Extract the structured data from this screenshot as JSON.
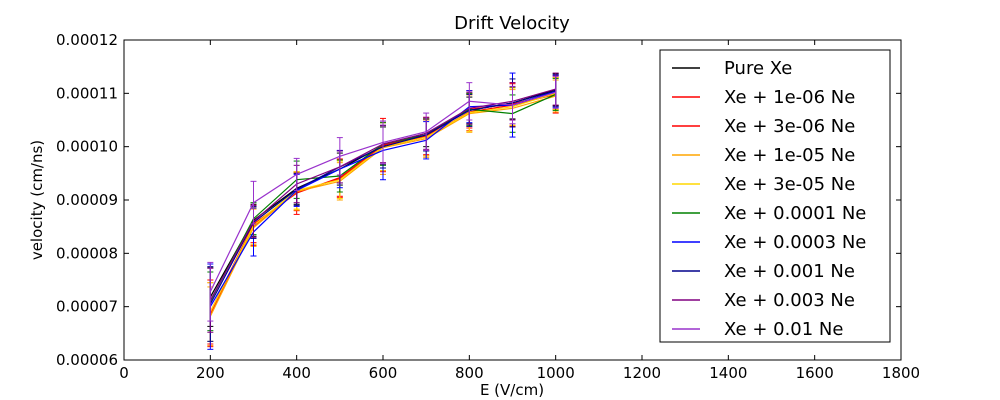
{
  "chart_data": {
    "type": "line",
    "title": "Drift Velocity",
    "xlabel": "E (V/cm)",
    "ylabel": "velocity (cm/ns)",
    "xlim": [
      0,
      1800
    ],
    "ylim": [
      6e-05,
      0.00012
    ],
    "x_ticks": [
      0,
      200,
      400,
      600,
      800,
      1000,
      1200,
      1400,
      1600,
      1800
    ],
    "y_ticks": [
      6e-05,
      7e-05,
      8e-05,
      9e-05,
      0.0001,
      0.00011,
      0.00012
    ],
    "x_tick_labels": [
      "0",
      "200",
      "400",
      "600",
      "800",
      "1000",
      "1200",
      "1400",
      "1600",
      "1800"
    ],
    "y_tick_labels": [
      "0.00006",
      "0.00007",
      "0.00008",
      "0.00009",
      "0.00010",
      "0.00011",
      "0.00012"
    ],
    "legend_position": "top-right",
    "grid": false,
    "x": [
      200,
      300,
      400,
      500,
      600,
      700,
      800,
      900,
      1000
    ],
    "series": [
      {
        "name": "Pure Xe",
        "color": "#000000",
        "values": [
          7.18e-05,
          8.62e-05,
          9.22e-05,
          9.58e-05,
          0.0001002,
          0.0001025,
          0.0001068,
          0.0001082,
          0.0001107
        ],
        "err": [
          5.5e-06,
          3e-06,
          3e-06,
          3e-06,
          3.5e-06,
          2.5e-06,
          2.5e-06,
          3e-06,
          3e-06
        ]
      },
      {
        "name": "Xe + 1e-06 Ne",
        "color": "#ff0000",
        "values": [
          6.9e-05,
          8.55e-05,
          9.13e-05,
          9.42e-05,
          0.0001003,
          0.000102,
          0.000107,
          0.000108,
          0.00011
        ],
        "err": [
          6e-06,
          3.5e-06,
          4e-06,
          3.5e-06,
          5e-06,
          3.5e-06,
          3.5e-06,
          4e-06,
          3e-06
        ]
      },
      {
        "name": "Xe + 3e-06 Ne",
        "color": "#ff0000",
        "values": [
          6.85e-05,
          8.5e-05,
          9.15e-05,
          9.4e-05,
          0.0001,
          0.0001018,
          0.0001065,
          0.0001078,
          0.0001098
        ],
        "err": [
          6e-06,
          3.5e-06,
          3.5e-06,
          3.5e-06,
          4.5e-06,
          3.5e-06,
          3.5e-06,
          4e-06,
          3.5e-06
        ]
      },
      {
        "name": "Xe + 1e-05 Ne",
        "color": "#ffa500",
        "values": [
          6.82e-05,
          8.48e-05,
          9.16e-05,
          9.35e-05,
          9.98e-05,
          0.0001015,
          0.0001062,
          0.0001072,
          0.0001095
        ],
        "err": [
          5.5e-06,
          3.5e-06,
          3.5e-06,
          3.5e-06,
          5e-06,
          3.5e-06,
          3.5e-06,
          3.5e-06,
          3e-06
        ]
      },
      {
        "name": "Xe + 3e-05 Ne",
        "color": "#ffd700",
        "values": [
          6.9e-05,
          8.52e-05,
          9.18e-05,
          9.38e-05,
          0.0001,
          0.0001018,
          0.0001064,
          0.0001075,
          0.00011
        ],
        "err": [
          5.5e-06,
          3.5e-06,
          3.5e-06,
          3.5e-06,
          4.5e-06,
          3.5e-06,
          3.5e-06,
          3.5e-06,
          3e-06
        ]
      },
      {
        "name": "Xe + 0.0001 Ne",
        "color": "#008000",
        "values": [
          7.1e-05,
          8.65e-05,
          9.38e-05,
          9.45e-05,
          0.0001005,
          0.0001022,
          0.000107,
          0.0001062,
          0.0001098
        ],
        "err": [
          5.5e-06,
          3e-06,
          3.5e-06,
          3e-06,
          4e-06,
          3e-06,
          3e-06,
          3.5e-06,
          3e-06
        ]
      },
      {
        "name": "Xe + 0.0003 Ne",
        "color": "#0000ff",
        "values": [
          7e-05,
          8.4e-05,
          9.18e-05,
          9.58e-05,
          9.93e-05,
          0.0001012,
          0.0001075,
          0.0001078,
          0.0001104
        ],
        "err": [
          8e-06,
          4.5e-06,
          3e-06,
          3.5e-06,
          5.5e-06,
          3.5e-06,
          3e-06,
          6e-06,
          3e-06
        ]
      },
      {
        "name": "Xe + 0.001 Ne",
        "color": "#00008b",
        "values": [
          7.05e-05,
          8.58e-05,
          9.2e-05,
          9.62e-05,
          0.0001,
          0.0001022,
          0.0001068,
          0.0001082,
          0.0001105
        ],
        "err": [
          7e-06,
          3e-06,
          3e-06,
          3e-06,
          4e-06,
          3e-06,
          3e-06,
          4.5e-06,
          3e-06
        ]
      },
      {
        "name": "Xe + 0.003 Ne",
        "color": "#800080",
        "values": [
          7.12e-05,
          8.6e-05,
          9.3e-05,
          9.62e-05,
          0.0001005,
          0.0001025,
          0.0001072,
          0.0001085,
          0.0001108
        ],
        "err": [
          6e-06,
          3e-06,
          3.5e-06,
          3e-06,
          3.5e-06,
          3e-06,
          3e-06,
          3.5e-06,
          3e-06
        ]
      },
      {
        "name": "Xe + 0.01 Ne",
        "color": "#9932cc",
        "values": [
          7.28e-05,
          8.95e-05,
          9.48e-05,
          9.82e-05,
          0.0001008,
          0.0001028,
          0.0001085,
          0.0001078,
          0.0001102
        ],
        "err": [
          5.5e-06,
          4e-06,
          3e-06,
          3.5e-06,
          4e-06,
          3.5e-06,
          3.5e-06,
          3.5e-06,
          3e-06
        ]
      }
    ]
  }
}
